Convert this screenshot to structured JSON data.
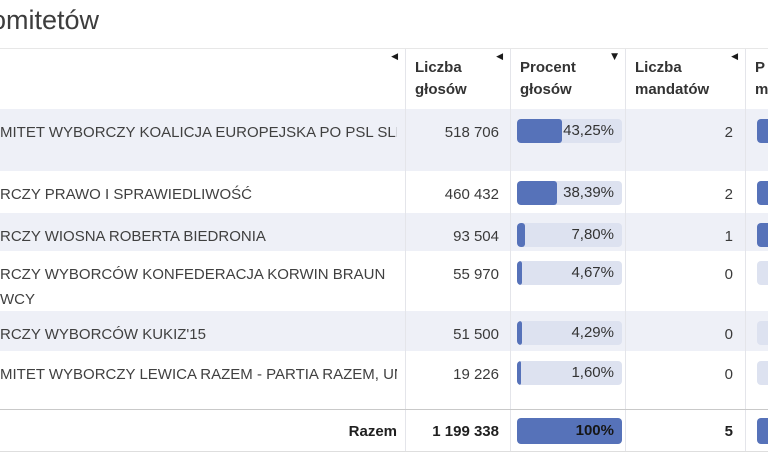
{
  "page": {
    "title_visible": "omitetów"
  },
  "icons": {
    "sort_inactive": "◀",
    "sort_desc": "▼"
  },
  "colors": {
    "accent_bar": "#5672b9",
    "bar_track": "#dde2f0",
    "row_alt_background": "#eef0f7"
  },
  "table": {
    "headers": {
      "votes": {
        "line1": "Liczba",
        "line2": "głosów"
      },
      "percent": {
        "line1": "Procent",
        "line2": "głosów"
      },
      "mandates": {
        "line1": "Liczba",
        "line2": "mandatów"
      },
      "mandates_percent": {
        "line1": "P",
        "line2": "m"
      }
    },
    "rows": [
      {
        "name_line1": "MITET WYBORCZY KOALICJA EUROPEJSKA PO PSL SLD .N",
        "name_line2": "",
        "votes": "518 706",
        "percent_label": "43,25%",
        "percent_value": 43.25,
        "mandates": "2",
        "mandates_percent_value": 40
      },
      {
        "name_line1": "RCZY PRAWO I SPRAWIEDLIWOŚĆ",
        "name_line2": "",
        "votes": "460 432",
        "percent_label": "38,39%",
        "percent_value": 38.39,
        "mandates": "2",
        "mandates_percent_value": 40
      },
      {
        "name_line1": "RCZY WIOSNA ROBERTA BIEDRONIA",
        "name_line2": "",
        "votes": "93 504",
        "percent_label": "7,80%",
        "percent_value": 7.8,
        "mandates": "1",
        "mandates_percent_value": 20
      },
      {
        "name_line1": "RCZY WYBORCÓW KONFEDERACJA KORWIN BRAUN",
        "name_line2": "WCY",
        "votes": "55 970",
        "percent_label": "4,67%",
        "percent_value": 4.67,
        "mandates": "0",
        "mandates_percent_value": 0
      },
      {
        "name_line1": "RCZY WYBORCÓW KUKIZ'15",
        "name_line2": "",
        "votes": "51 500",
        "percent_label": "4,29%",
        "percent_value": 4.29,
        "mandates": "0",
        "mandates_percent_value": 0
      },
      {
        "name_line1": "MITET WYBORCZY LEWICA RAZEM - PARTIA RAZEM, UNIA",
        "name_line2": "",
        "votes": "19 226",
        "percent_label": "1,60%",
        "percent_value": 1.6,
        "mandates": "0",
        "mandates_percent_value": 0
      }
    ],
    "footer": {
      "label": "Razem",
      "votes": "1 199 338",
      "percent_label": "100%",
      "percent_value": 100,
      "mandates": "5",
      "mandates_percent_value": 100
    }
  }
}
